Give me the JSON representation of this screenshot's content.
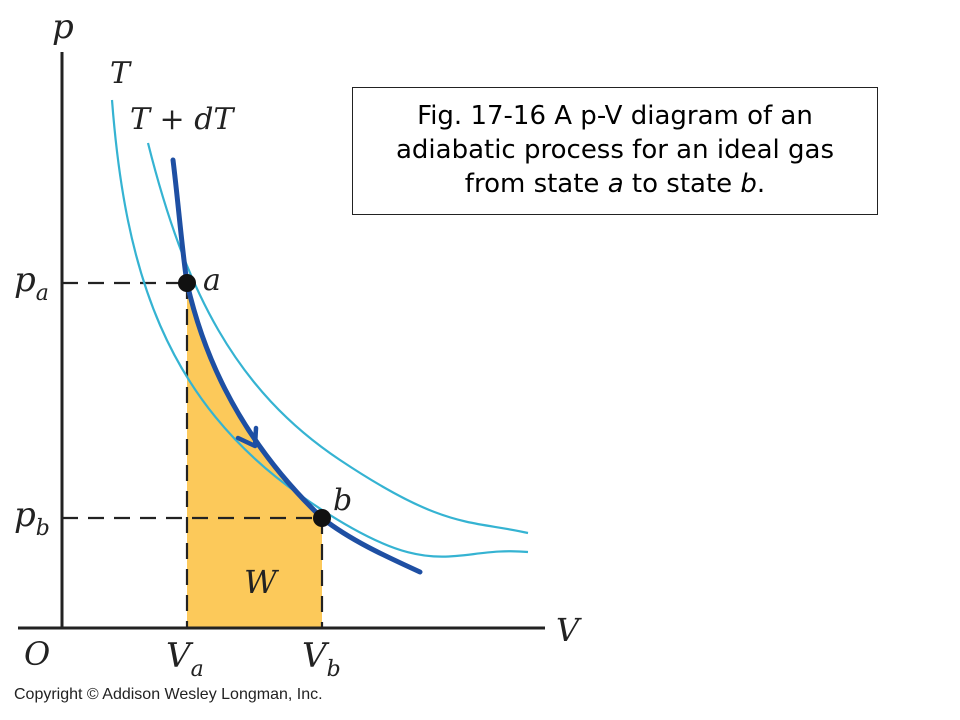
{
  "caption": {
    "line1": "Fig. 17-16 A p-V diagram of an",
    "line2": "adiabatic process for an ideal gas",
    "line3_before": "from state ",
    "line3_state_a": "a",
    "line3_middle": " to state ",
    "line3_state_b": "b",
    "line3_after": "."
  },
  "axes": {
    "y_label": "p",
    "x_label": "V",
    "origin_label": "O"
  },
  "ticks": {
    "pa_main": "p",
    "pa_sub": "a",
    "pb_main": "p",
    "pb_sub": "b",
    "va_main": "V",
    "va_sub": "a",
    "vb_main": "V",
    "vb_sub": "b"
  },
  "curves": {
    "isotherm_T": "T",
    "isotherm_TdT": "T + dT"
  },
  "points": {
    "a": "a",
    "b": "b"
  },
  "work_label": "W",
  "copyright": "Copyright © Addison Wesley Longman, Inc.",
  "colors": {
    "isotherm": "#35b3d2",
    "adiabat": "#1e4fa3",
    "work_area": "#fcc95a",
    "axis": "#222222"
  }
}
